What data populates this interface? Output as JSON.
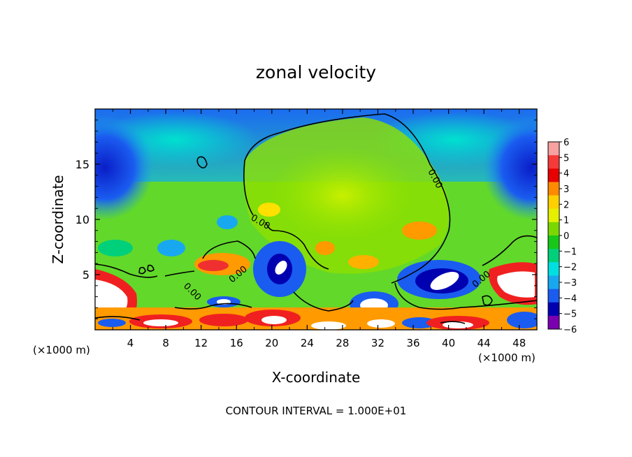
{
  "chart_data": {
    "type": "heatmap",
    "title": "zonal velocity",
    "xlabel": "X-coordinate",
    "ylabel": "Z-coordinate",
    "x_unit_left": "(×1000 m)",
    "x_unit_right": "(×1000 m)",
    "footer": "CONTOUR INTERVAL = 1.000E+01",
    "xlim": [
      0,
      50
    ],
    "ylim": [
      0,
      20
    ],
    "x_ticks": [
      4,
      8,
      12,
      16,
      20,
      24,
      28,
      32,
      36,
      40,
      44,
      48
    ],
    "y_ticks": [
      5,
      10,
      15
    ],
    "contour_label": "0.00",
    "colorbar": {
      "levels": [
        6,
        5,
        4,
        3,
        2,
        1,
        0,
        -1,
        -2,
        -3,
        -4,
        -5,
        -6
      ],
      "colors": [
        "#f7a1a1",
        "#f63a3a",
        "#e80000",
        "#ff8a00",
        "#ffd000",
        "#e4f000",
        "#7ad800",
        "#18c818",
        "#00d07a",
        "#00e0e0",
        "#18a8f0",
        "#1a5cf0",
        "#0000b0",
        "#7a00b0"
      ]
    },
    "field_colors": {
      "background_green": "#5ed62c",
      "white": "#ffffff",
      "black_contour": "#000000"
    }
  }
}
